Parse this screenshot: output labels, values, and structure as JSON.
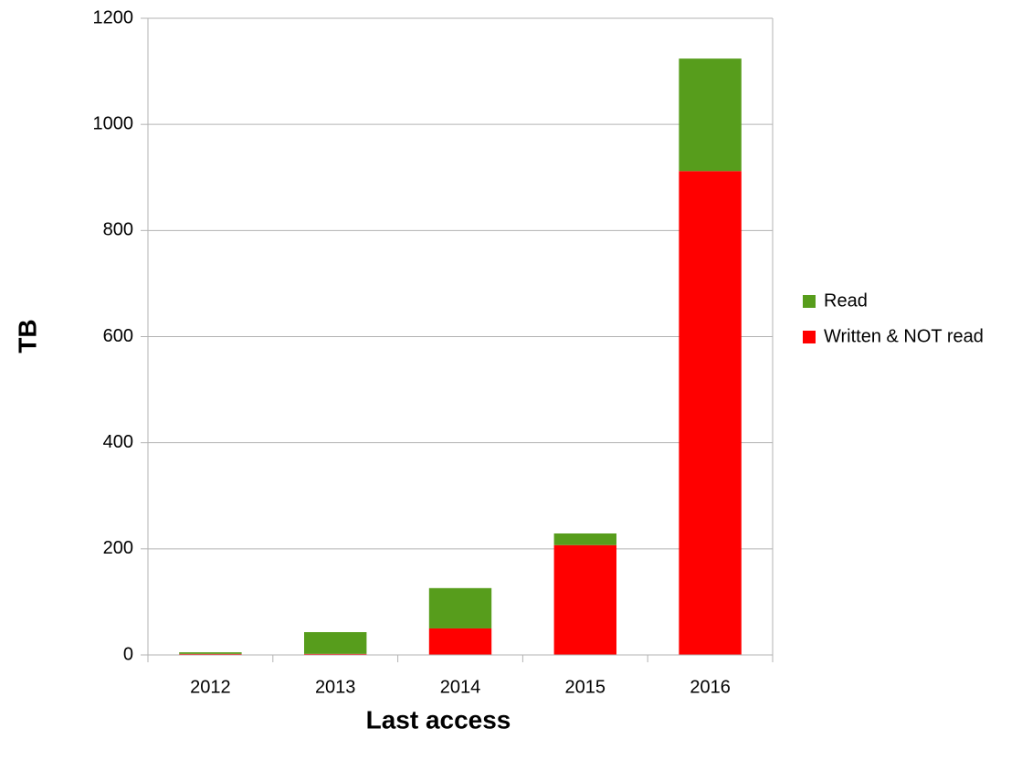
{
  "chart_data": {
    "type": "stacked_bar",
    "x_label": "Last access",
    "y_label": "TB",
    "categories": [
      "2012",
      "2013",
      "2014",
      "2015",
      "2016"
    ],
    "series": [
      {
        "name": "Written & NOT read",
        "color": "#ff0000",
        "values": [
          2,
          2,
          50,
          207,
          912
        ]
      },
      {
        "name": "Read",
        "color": "#579d1c",
        "values": [
          3,
          41,
          76,
          22,
          212
        ]
      }
    ],
    "ylim": [
      0,
      1200
    ],
    "yticks": [
      0,
      200,
      400,
      600,
      800,
      1000,
      1200
    ],
    "grid": true,
    "legend": "right"
  }
}
